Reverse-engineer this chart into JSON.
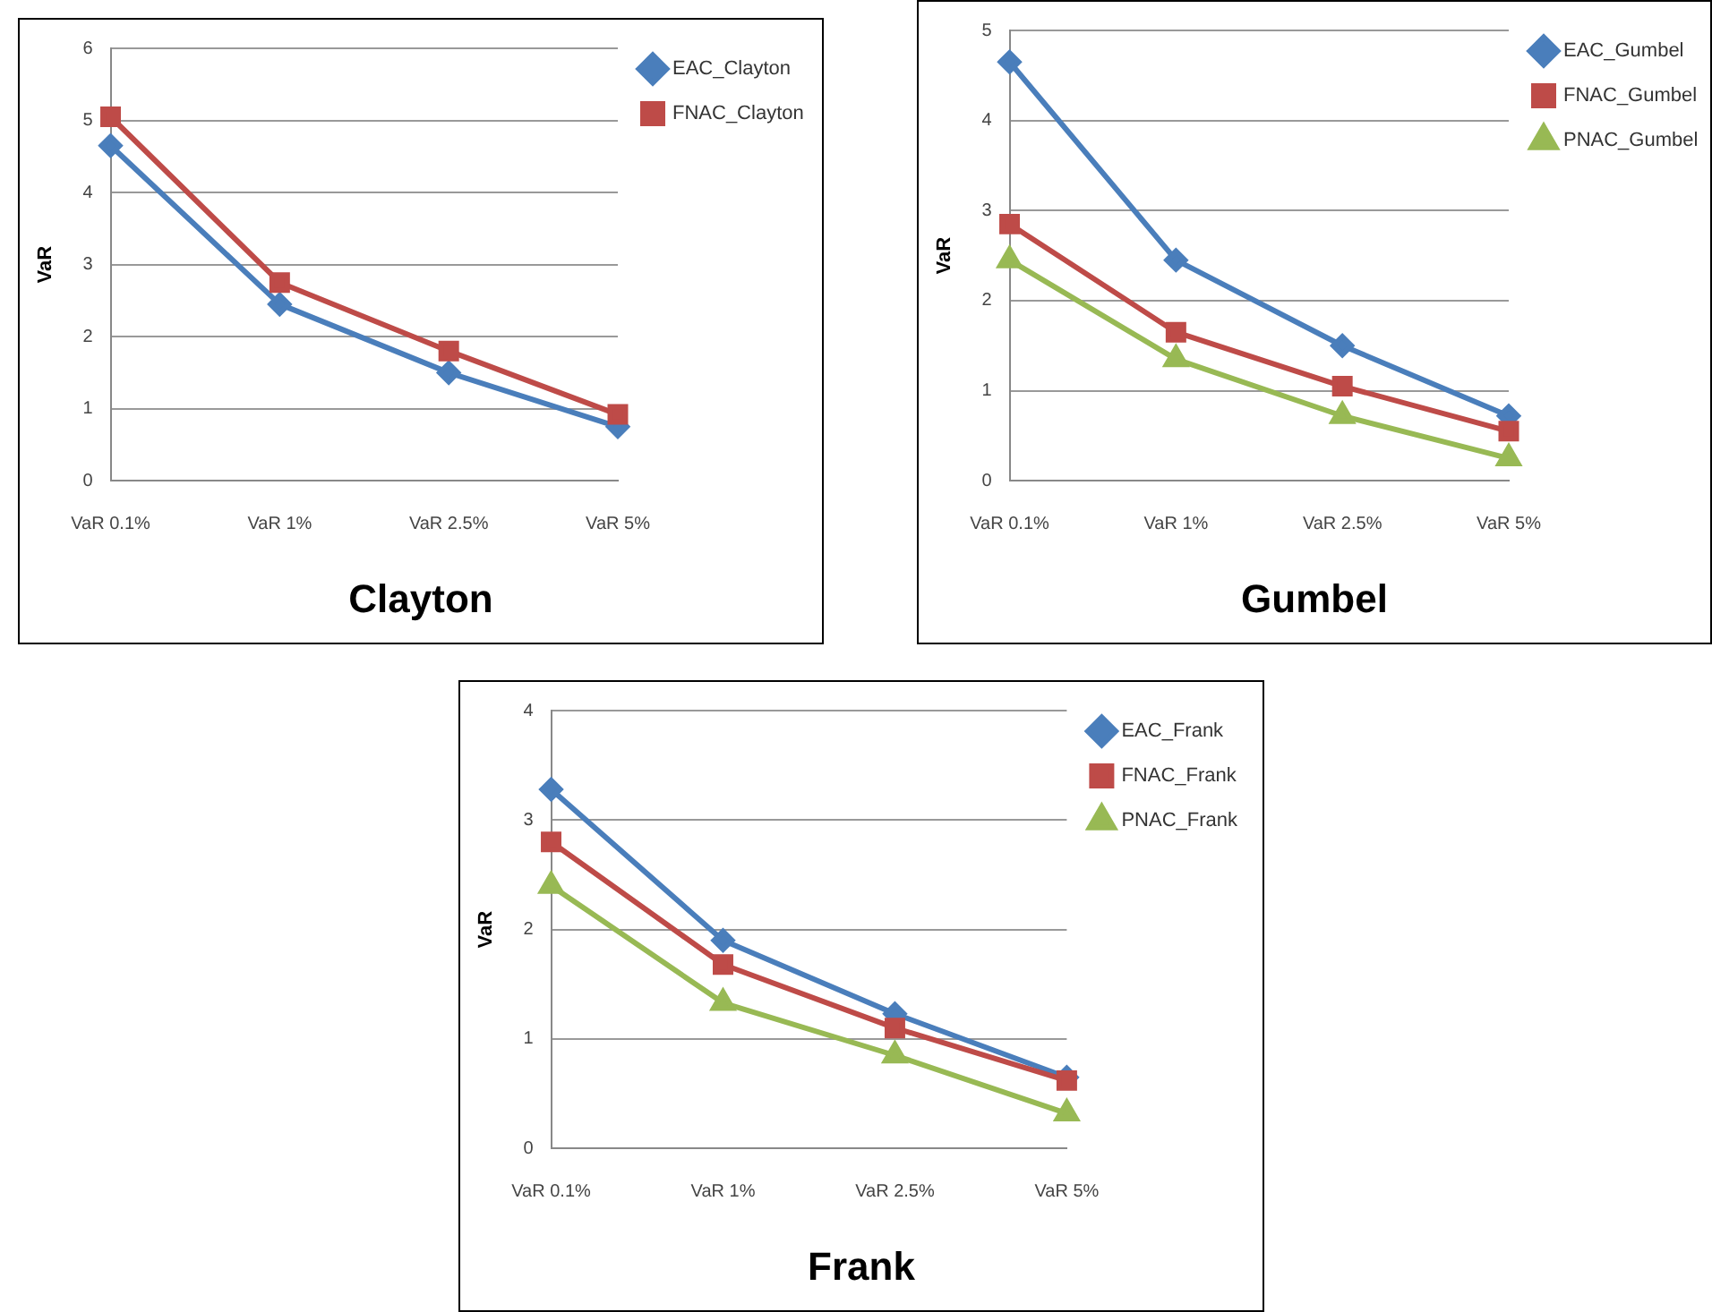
{
  "chart_data": [
    {
      "type": "line",
      "title": "Clayton",
      "ylabel": "VaR",
      "categories": [
        "VaR 0.1%",
        "VaR 1%",
        "VaR 2.5%",
        "VaR 5%"
      ],
      "ylim": [
        0,
        6
      ],
      "yticks": [
        0,
        1,
        2,
        3,
        4,
        5,
        6
      ],
      "grid": "y",
      "legend": "top right",
      "series": [
        {
          "name": "EAC_Clayton",
          "color": "#4a7ebb",
          "marker": "diamond",
          "values": [
            4.65,
            2.45,
            1.5,
            0.75
          ]
        },
        {
          "name": "FNAC_Clayton",
          "color": "#be4b48",
          "marker": "square",
          "values": [
            5.05,
            2.75,
            1.8,
            0.92
          ]
        }
      ]
    },
    {
      "type": "line",
      "title": "Gumbel",
      "ylabel": "VaR",
      "categories": [
        "VaR 0.1%",
        "VaR 1%",
        "VaR 2.5%",
        "VaR 5%"
      ],
      "ylim": [
        0,
        5
      ],
      "yticks": [
        0,
        1,
        2,
        3,
        4,
        5
      ],
      "grid": "y",
      "legend": "top right",
      "series": [
        {
          "name": "EAC_Gumbel",
          "color": "#4a7ebb",
          "marker": "diamond",
          "values": [
            4.65,
            2.45,
            1.5,
            0.72
          ]
        },
        {
          "name": "FNAC_Gumbel",
          "color": "#be4b48",
          "marker": "square",
          "values": [
            2.85,
            1.65,
            1.05,
            0.55
          ]
        },
        {
          "name": "PNAC_Gumbel",
          "color": "#98b954",
          "marker": "triangle",
          "values": [
            2.45,
            1.35,
            0.72,
            0.25
          ]
        }
      ]
    },
    {
      "type": "line",
      "title": "Frank",
      "ylabel": "VaR",
      "categories": [
        "VaR 0.1%",
        "VaR 1%",
        "VaR 2.5%",
        "VaR 5%"
      ],
      "ylim": [
        0,
        4
      ],
      "yticks": [
        0,
        1,
        2,
        3,
        4
      ],
      "grid": "y",
      "legend": "top right",
      "series": [
        {
          "name": "EAC_Frank",
          "color": "#4a7ebb",
          "marker": "diamond",
          "values": [
            3.28,
            1.9,
            1.23,
            0.65
          ]
        },
        {
          "name": "FNAC_Frank",
          "color": "#be4b48",
          "marker": "square",
          "values": [
            2.8,
            1.68,
            1.1,
            0.62
          ]
        },
        {
          "name": "PNAC_Frank",
          "color": "#98b954",
          "marker": "triangle",
          "values": [
            2.4,
            1.33,
            0.85,
            0.32
          ]
        }
      ]
    }
  ]
}
